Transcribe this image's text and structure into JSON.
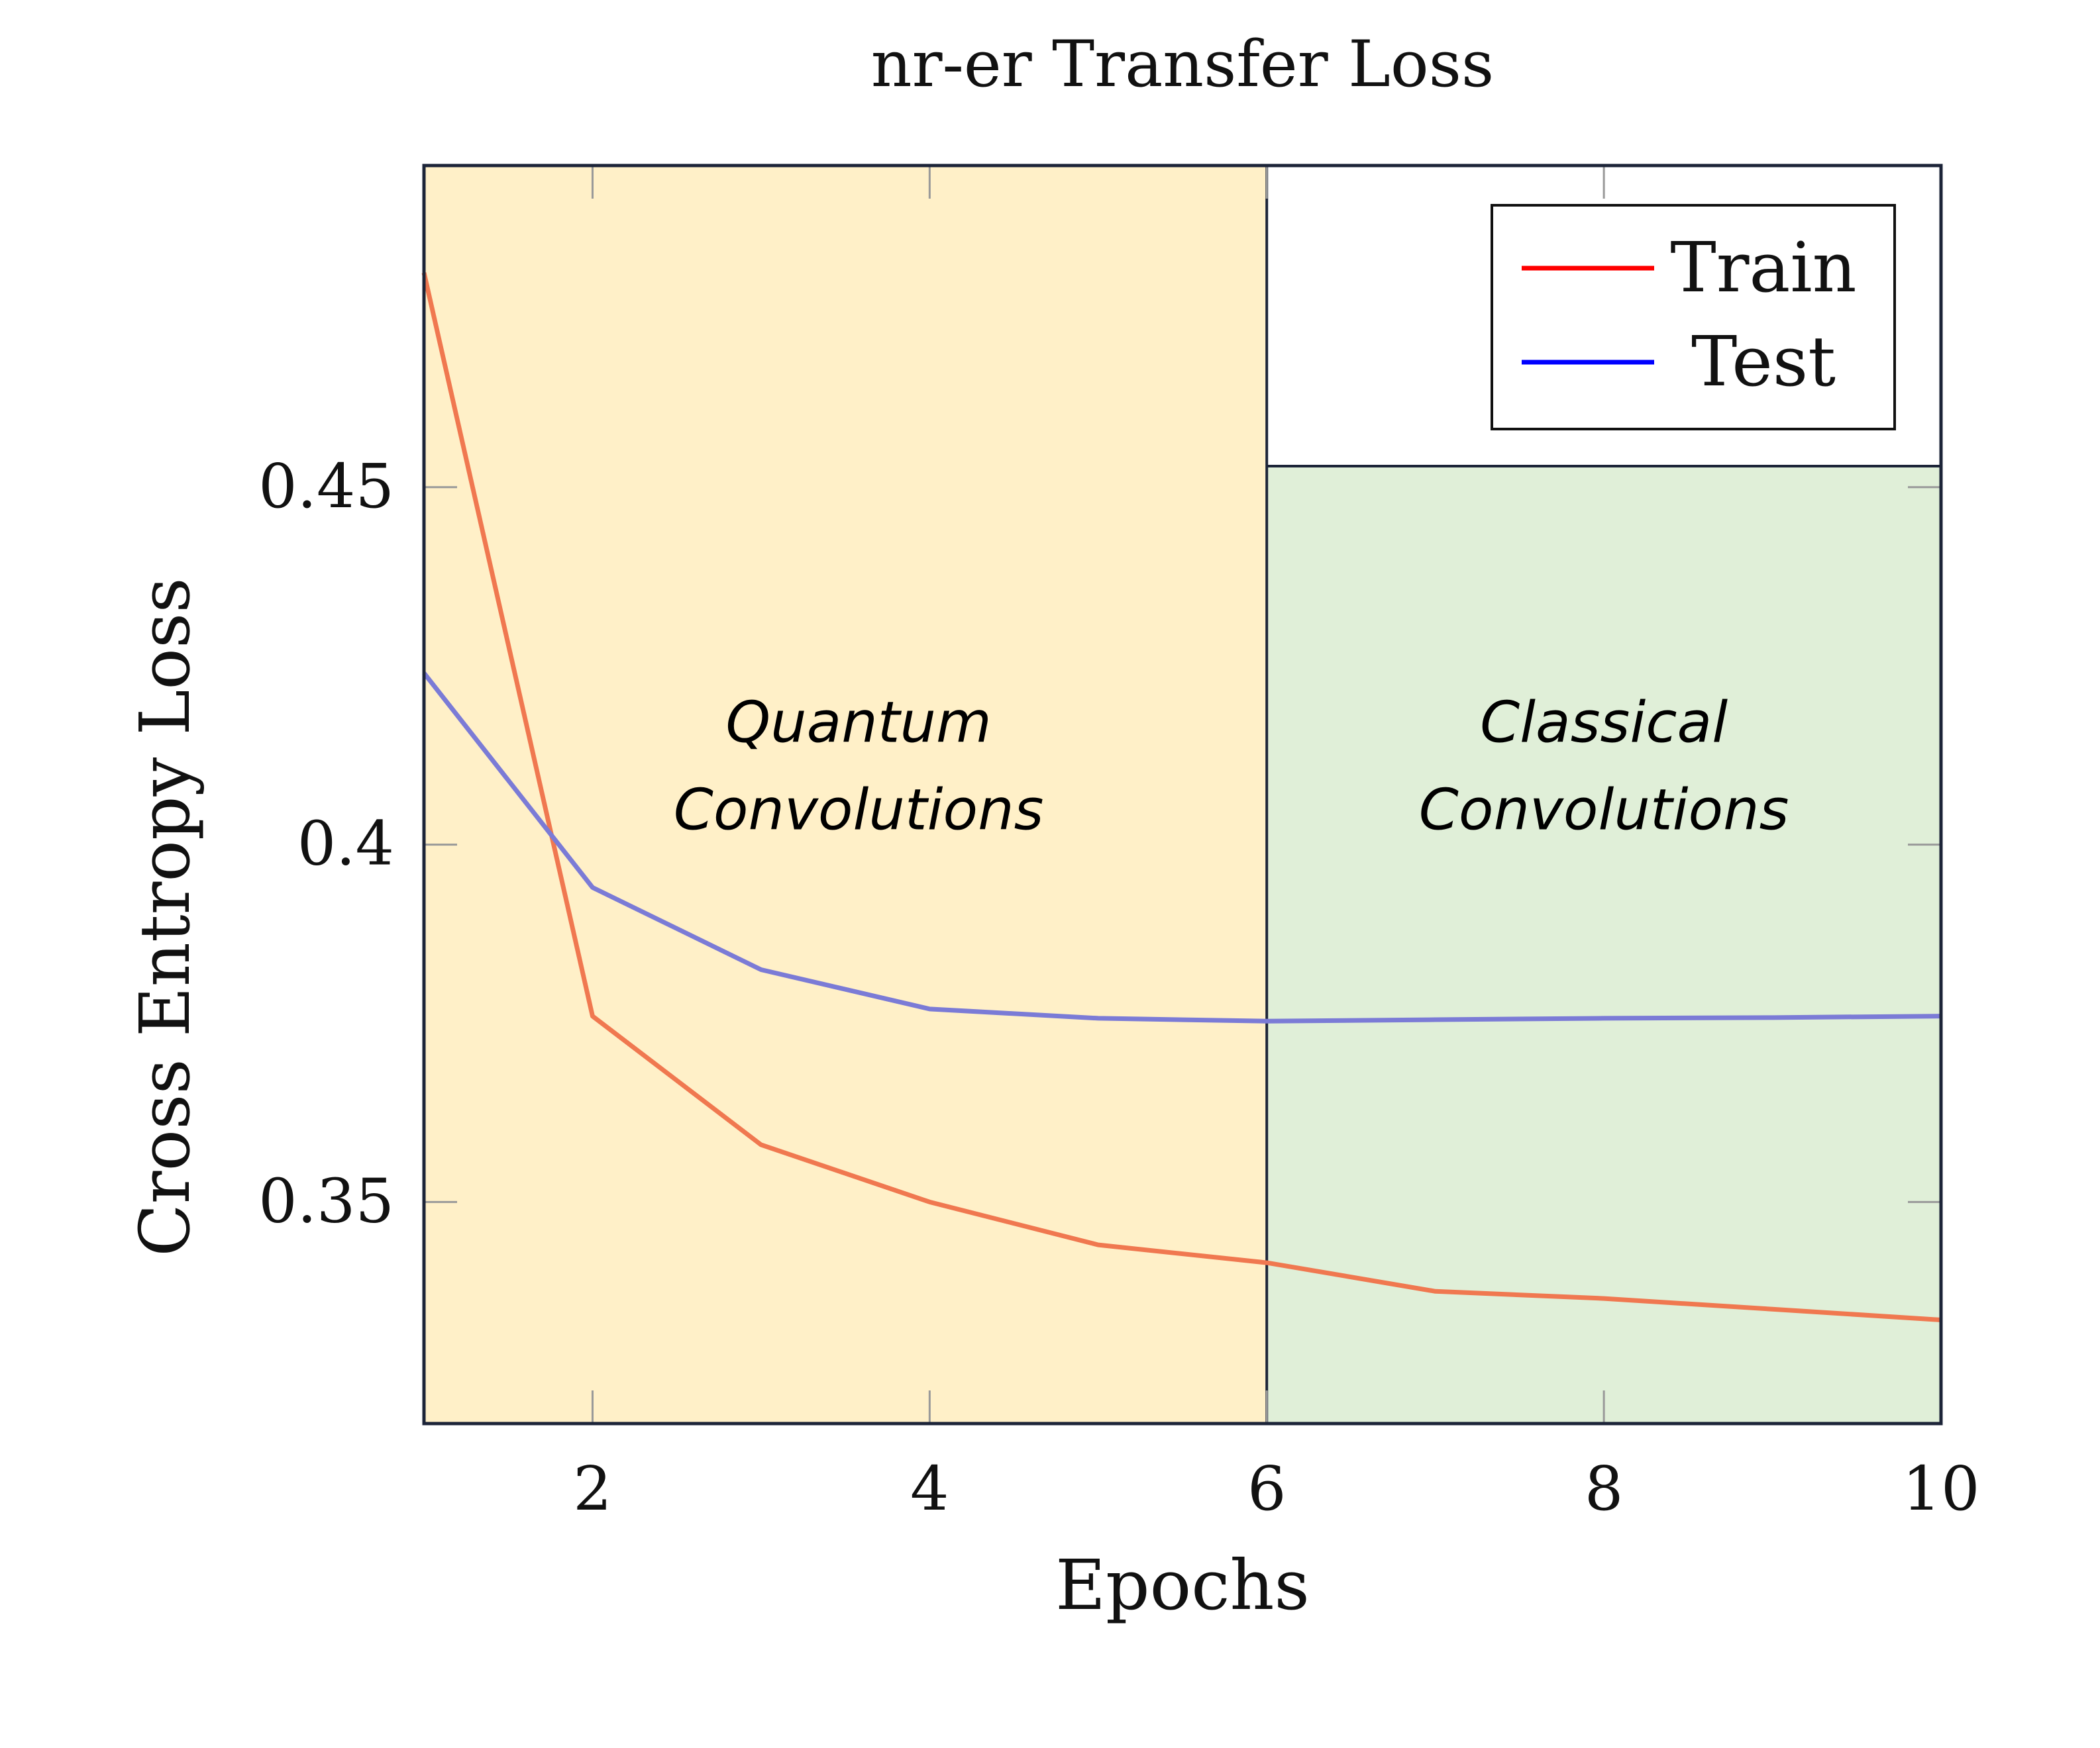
{
  "chart_data": {
    "type": "line",
    "title": "nr-er Transfer Loss",
    "xlabel": "Epochs",
    "ylabel": "Cross Entropy Loss",
    "xlim": [
      1,
      10
    ],
    "ylim": [
      0.319,
      0.495
    ],
    "xticks": [
      2,
      4,
      6,
      8,
      10
    ],
    "xtick_labels": [
      "2",
      "4",
      "6",
      "8",
      "10"
    ],
    "yticks": [
      0.35,
      0.4,
      0.45
    ],
    "ytick_labels": [
      "0.35",
      "0.4",
      "0.45"
    ],
    "grid": false,
    "legend": "top-right",
    "x": [
      1,
      2,
      3,
      4,
      5,
      6,
      7,
      8,
      9,
      10
    ],
    "series": [
      {
        "name": "Train",
        "legend_color": "#ff0000",
        "line_color": "#f07850",
        "values": [
          0.48,
          0.376,
          0.358,
          0.35,
          0.344,
          0.3415,
          0.3375,
          0.3365,
          0.335,
          0.3335
        ]
      },
      {
        "name": "Test",
        "legend_color": "#0000ff",
        "line_color": "#7b7bd6",
        "values": [
          0.424,
          0.394,
          0.3825,
          0.377,
          0.3757,
          0.3753,
          0.3755,
          0.3757,
          0.3758,
          0.376
        ]
      }
    ],
    "regions": [
      {
        "x_from": 1,
        "x_to": 6,
        "label_line1": "Quantum",
        "label_line2": "Convolutions",
        "color": "#fff0c8"
      },
      {
        "x_from": 6,
        "x_to": 10,
        "label_line1": "Classical",
        "label_line2": "Convolutions",
        "color": "#e0efd8"
      }
    ],
    "region_label_y": 0.4125
  }
}
